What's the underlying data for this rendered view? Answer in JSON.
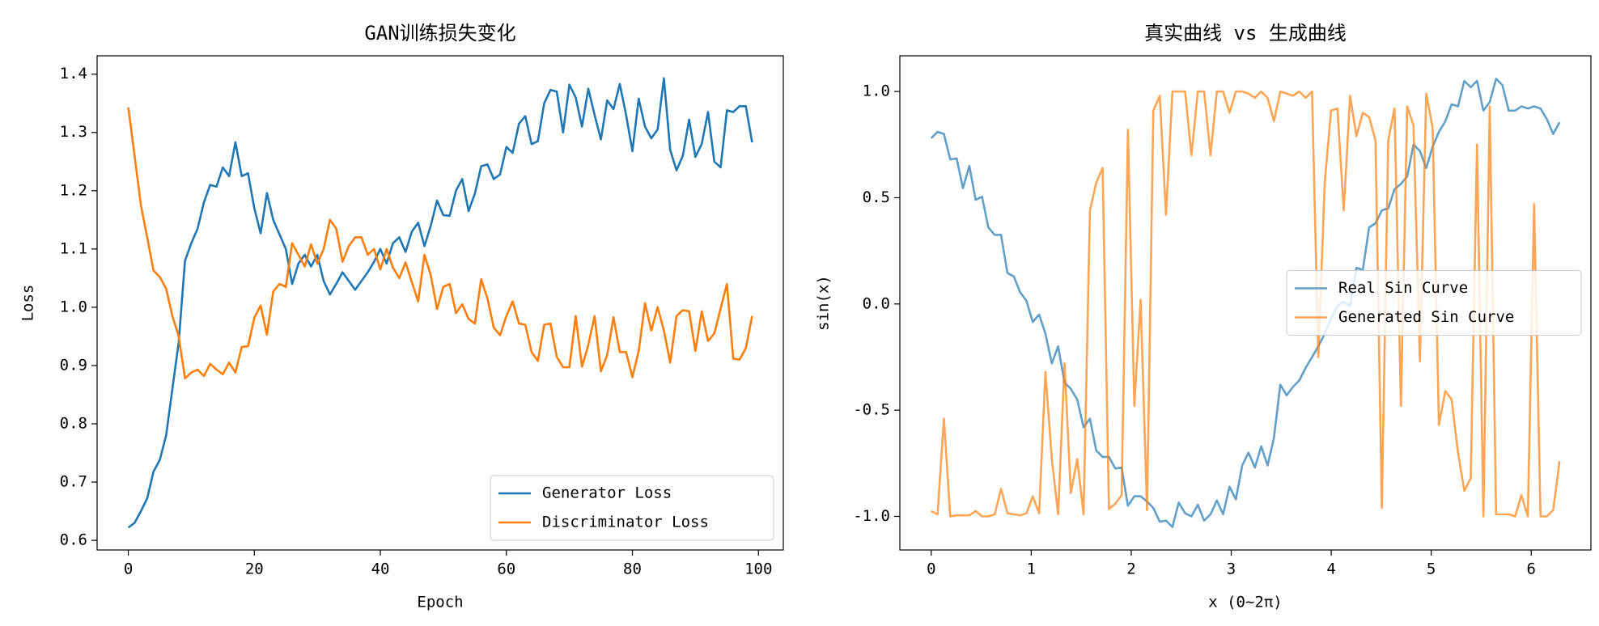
{
  "chart_data": [
    {
      "type": "line",
      "title": "GAN训练损失变化",
      "x_label": "Epoch",
      "y_label": "Loss",
      "x": [
        0,
        1,
        2,
        3,
        4,
        5,
        6,
        7,
        8,
        9,
        10,
        11,
        12,
        13,
        14,
        15,
        16,
        17,
        18,
        19,
        20,
        21,
        22,
        23,
        24,
        25,
        26,
        27,
        28,
        29,
        30,
        31,
        32,
        33,
        34,
        35,
        36,
        37,
        38,
        39,
        40,
        41,
        42,
        43,
        44,
        45,
        46,
        47,
        48,
        49,
        50,
        51,
        52,
        53,
        54,
        55,
        56,
        57,
        58,
        59,
        60,
        61,
        62,
        63,
        64,
        65,
        66,
        67,
        68,
        69,
        70,
        71,
        72,
        73,
        74,
        75,
        76,
        77,
        78,
        79,
        80,
        81,
        82,
        83,
        84,
        85,
        86,
        87,
        88,
        89,
        90,
        91,
        92,
        93,
        94,
        95,
        96,
        97,
        98,
        99
      ],
      "series": [
        {
          "name": "Generator Loss",
          "color": "#1f77b4",
          "opacity": 1,
          "values": [
            0.622,
            0.63,
            0.65,
            0.672,
            0.718,
            0.738,
            0.78,
            0.86,
            0.94,
            1.08,
            1.11,
            1.135,
            1.18,
            1.21,
            1.207,
            1.24,
            1.225,
            1.283,
            1.225,
            1.23,
            1.17,
            1.127,
            1.196,
            1.15,
            1.125,
            1.1,
            1.04,
            1.075,
            1.09,
            1.07,
            1.09,
            1.045,
            1.022,
            1.04,
            1.06,
            1.045,
            1.03,
            1.045,
            1.06,
            1.078,
            1.1,
            1.075,
            1.11,
            1.12,
            1.095,
            1.13,
            1.145,
            1.105,
            1.14,
            1.183,
            1.158,
            1.157,
            1.2,
            1.22,
            1.165,
            1.195,
            1.242,
            1.245,
            1.22,
            1.228,
            1.275,
            1.265,
            1.315,
            1.328,
            1.28,
            1.285,
            1.35,
            1.373,
            1.37,
            1.3,
            1.382,
            1.36,
            1.31,
            1.375,
            1.33,
            1.288,
            1.355,
            1.34,
            1.383,
            1.33,
            1.268,
            1.358,
            1.31,
            1.29,
            1.305,
            1.393,
            1.27,
            1.235,
            1.26,
            1.322,
            1.258,
            1.28,
            1.335,
            1.25,
            1.24,
            1.338,
            1.335,
            1.345,
            1.345,
            1.283
          ]
        },
        {
          "name": "Discriminator Loss",
          "color": "#ff7f0e",
          "opacity": 1,
          "values": [
            1.343,
            1.26,
            1.175,
            1.12,
            1.063,
            1.052,
            1.032,
            0.985,
            0.95,
            0.878,
            0.888,
            0.893,
            0.882,
            0.903,
            0.893,
            0.885,
            0.905,
            0.888,
            0.932,
            0.933,
            0.982,
            1.003,
            0.953,
            1.027,
            1.04,
            1.035,
            1.11,
            1.09,
            1.07,
            1.108,
            1.075,
            1.1,
            1.15,
            1.135,
            1.078,
            1.105,
            1.12,
            1.12,
            1.09,
            1.1,
            1.065,
            1.1,
            1.068,
            1.05,
            1.077,
            1.043,
            1.01,
            1.09,
            1.055,
            0.997,
            1.035,
            1.04,
            0.99,
            1.005,
            0.98,
            0.972,
            1.048,
            1.015,
            0.965,
            0.952,
            0.985,
            1.01,
            0.972,
            0.97,
            0.923,
            0.908,
            0.97,
            0.972,
            0.915,
            0.897,
            0.897,
            0.985,
            0.898,
            0.935,
            0.985,
            0.89,
            0.918,
            0.983,
            0.923,
            0.923,
            0.88,
            0.925,
            1.007,
            0.96,
            1.0,
            0.96,
            0.905,
            0.985,
            0.995,
            0.993,
            0.925,
            0.993,
            0.942,
            0.955,
            0.998,
            1.04,
            0.912,
            0.91,
            0.93,
            0.985
          ]
        }
      ],
      "xlim": [
        -4.95,
        103.95
      ],
      "xticks": [
        0,
        20,
        40,
        60,
        80,
        100
      ],
      "ylim": [
        0.5835,
        1.4315
      ],
      "yticks": [
        0.6,
        0.7,
        0.8,
        0.9,
        {
          "value": 1.0,
          "label": "1.0"
        },
        1.1,
        1.2,
        1.3,
        1.4
      ],
      "legend": "lower right",
      "grid": false
    },
    {
      "type": "line",
      "title": "真实曲线 vs 生成曲线",
      "x_label": "x (0~2π)",
      "y_label": "sin(x)",
      "x": [
        0,
        0.063,
        0.127,
        0.19,
        0.254,
        0.317,
        0.381,
        0.444,
        0.508,
        0.571,
        0.635,
        0.698,
        0.762,
        0.825,
        0.889,
        0.952,
        1.015,
        1.079,
        1.142,
        1.206,
        1.269,
        1.333,
        1.396,
        1.46,
        1.523,
        1.587,
        1.65,
        1.714,
        1.777,
        1.841,
        1.904,
        1.967,
        2.031,
        2.094,
        2.158,
        2.221,
        2.285,
        2.348,
        2.412,
        2.475,
        2.539,
        2.602,
        2.666,
        2.729,
        2.793,
        2.856,
        2.919,
        2.983,
        3.046,
        3.11,
        3.173,
        3.237,
        3.3,
        3.364,
        3.427,
        3.491,
        3.554,
        3.618,
        3.681,
        3.745,
        3.808,
        3.871,
        3.935,
        3.998,
        4.062,
        4.125,
        4.189,
        4.252,
        4.316,
        4.379,
        4.443,
        4.506,
        4.57,
        4.633,
        4.697,
        4.76,
        4.823,
        4.887,
        4.95,
        5.014,
        5.077,
        5.141,
        5.204,
        5.268,
        5.331,
        5.395,
        5.458,
        5.522,
        5.585,
        5.649,
        5.712,
        5.775,
        5.839,
        5.902,
        5.966,
        6.029,
        6.093,
        6.156,
        6.22,
        6.283
      ],
      "series": [
        {
          "name": "Real Sin Curve",
          "color": "#1f77b4",
          "opacity": 0.7,
          "values": [
            0.78,
            0.81,
            0.8,
            0.68,
            0.685,
            0.545,
            0.65,
            0.49,
            0.505,
            0.36,
            0.325,
            0.325,
            0.145,
            0.13,
            0.055,
            0.015,
            -0.085,
            -0.05,
            -0.14,
            -0.28,
            -0.2,
            -0.37,
            -0.4,
            -0.45,
            -0.58,
            -0.54,
            -0.69,
            -0.72,
            -0.72,
            -0.775,
            -0.77,
            -0.95,
            -0.905,
            -0.905,
            -0.93,
            -0.96,
            -1.025,
            -1.02,
            -1.05,
            -0.935,
            -0.985,
            -1.0,
            -0.945,
            -1.02,
            -0.99,
            -0.925,
            -0.99,
            -0.86,
            -0.92,
            -0.76,
            -0.7,
            -0.77,
            -0.67,
            -0.76,
            -0.63,
            -0.38,
            -0.43,
            -0.39,
            -0.36,
            -0.3,
            -0.25,
            -0.2,
            -0.14,
            -0.07,
            -0.01,
            0.01,
            -0.01,
            0.17,
            0.16,
            0.36,
            0.38,
            0.44,
            0.45,
            0.54,
            0.565,
            0.6,
            0.75,
            0.72,
            0.64,
            0.74,
            0.81,
            0.86,
            0.94,
            0.93,
            1.05,
            1.02,
            1.05,
            0.91,
            0.95,
            1.06,
            1.03,
            0.91,
            0.91,
            0.93,
            0.92,
            0.93,
            0.92,
            0.87,
            0.8,
            0.855
          ]
        },
        {
          "name": "Generated Sin Curve",
          "color": "#ff7f0e",
          "opacity": 0.7,
          "values": [
            -0.975,
            -0.99,
            -0.54,
            -1.0,
            -0.995,
            -0.995,
            -0.995,
            -0.975,
            -1.0,
            -1.0,
            -0.99,
            -0.87,
            -0.985,
            -0.99,
            -0.995,
            -0.985,
            -0.905,
            -0.985,
            -0.32,
            -0.73,
            -0.99,
            -0.28,
            -0.89,
            -0.73,
            -0.99,
            0.44,
            0.57,
            0.64,
            -0.965,
            -0.94,
            -0.9,
            0.82,
            -0.48,
            0.02,
            -0.97,
            0.91,
            0.98,
            0.42,
            1.0,
            1.0,
            1.0,
            0.7,
            1.0,
            1.0,
            0.7,
            1.0,
            1.0,
            0.9,
            1.0,
            1.0,
            0.99,
            0.97,
            1.0,
            0.97,
            0.86,
            1.0,
            0.99,
            0.98,
            1.0,
            0.97,
            1.0,
            -0.25,
            0.57,
            0.91,
            0.92,
            0.44,
            0.98,
            0.79,
            0.9,
            0.88,
            0.77,
            -0.96,
            0.77,
            0.92,
            -0.48,
            0.93,
            0.84,
            -0.27,
            0.99,
            0.83,
            -0.57,
            -0.41,
            -0.45,
            -0.7,
            -0.88,
            -0.82,
            0.75,
            -1.0,
            0.93,
            -0.99,
            -0.99,
            -0.99,
            -1.0,
            -0.9,
            -1.0,
            0.47,
            -1.0,
            -1.0,
            -0.97,
            -0.74
          ]
        }
      ],
      "xlim": [
        -0.314,
        6.597
      ],
      "xticks": [
        0,
        1,
        2,
        3,
        4,
        5,
        6
      ],
      "ylim": [
        -1.158,
        1.168
      ],
      "yticks": [
        {
          "value": -1.0,
          "label": "-1.0"
        },
        -0.5,
        {
          "value": 0.0,
          "label": "0.0"
        },
        0.5,
        {
          "value": 1.0,
          "label": "1.0"
        }
      ],
      "legend": "center right",
      "grid": false
    }
  ]
}
